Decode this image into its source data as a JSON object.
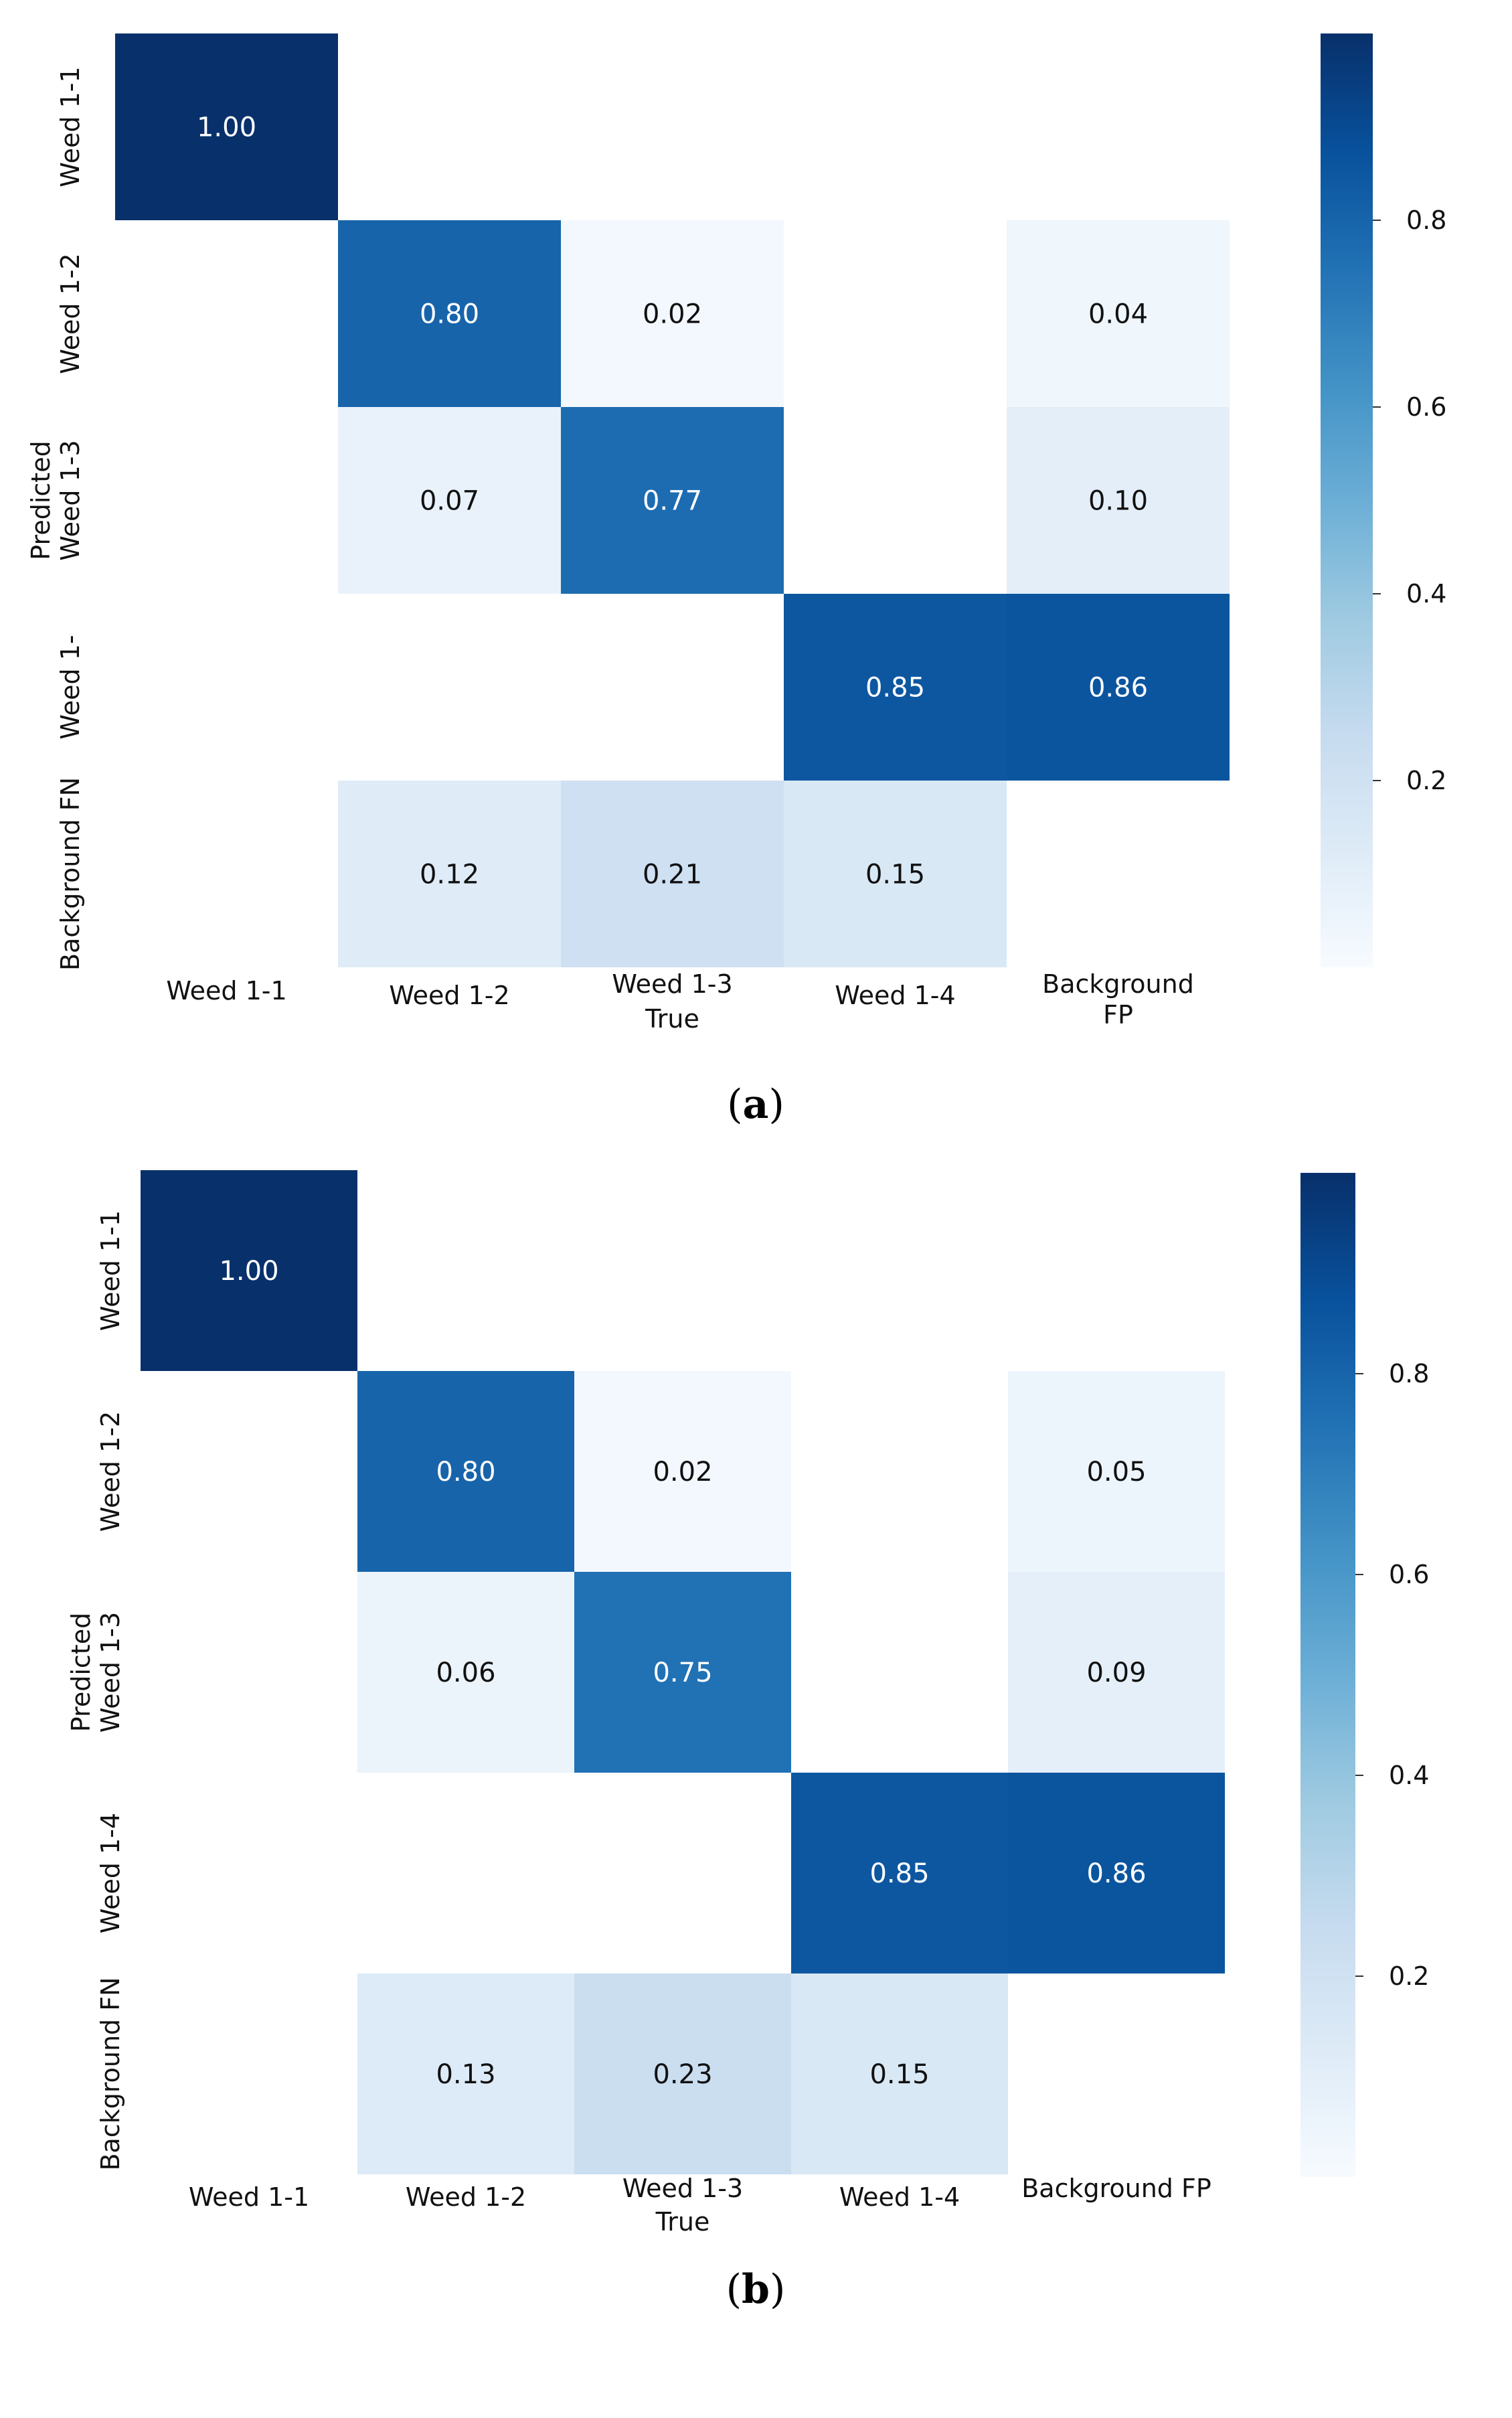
{
  "chart_data": [
    {
      "type": "heatmap",
      "caption_open": "(",
      "caption_letter": "a",
      "caption_close": ")",
      "colormap": "Blues",
      "colorbar": {
        "range": [
          0,
          1
        ],
        "ticks": [
          0.2,
          0.4,
          0.6,
          0.8
        ]
      },
      "x_categories": [
        "Weed 1-1",
        "Weed 1-2",
        "Weed 1-3",
        "Weed 1-4",
        "Background FP"
      ],
      "y_categories": [
        "Weed 1-1",
        "Weed 1-2",
        "Weed 1-3",
        "Weed 1-",
        "Background FN"
      ],
      "xlabel": "True",
      "ylabel": "Predicted",
      "values": [
        [
          1.0,
          null,
          null,
          null,
          null
        ],
        [
          null,
          0.8,
          0.02,
          null,
          0.04
        ],
        [
          null,
          0.07,
          0.77,
          null,
          0.1
        ],
        [
          null,
          null,
          null,
          0.85,
          0.86
        ],
        [
          null,
          0.12,
          0.21,
          0.15,
          null
        ]
      ]
    },
    {
      "type": "heatmap",
      "caption_open": "(",
      "caption_letter": "b",
      "caption_close": ")",
      "colormap": "Blues",
      "colorbar": {
        "range": [
          0,
          1
        ],
        "ticks": [
          0.2,
          0.4,
          0.6,
          0.8
        ]
      },
      "x_categories": [
        "Weed 1-1",
        "Weed 1-2",
        "Weed 1-3",
        "Weed 1-4",
        "Background FP"
      ],
      "y_categories": [
        "Weed 1-1",
        "Weed 1-2",
        "Weed 1-3",
        "Weed 1-4",
        "Background FN"
      ],
      "xlabel": "True",
      "ylabel": "Predicted",
      "values": [
        [
          1.0,
          null,
          null,
          null,
          null
        ],
        [
          null,
          0.8,
          0.02,
          null,
          0.05
        ],
        [
          null,
          0.06,
          0.75,
          null,
          0.09
        ],
        [
          null,
          null,
          null,
          0.85,
          0.86
        ],
        [
          null,
          0.13,
          0.23,
          0.15,
          null
        ]
      ]
    }
  ]
}
